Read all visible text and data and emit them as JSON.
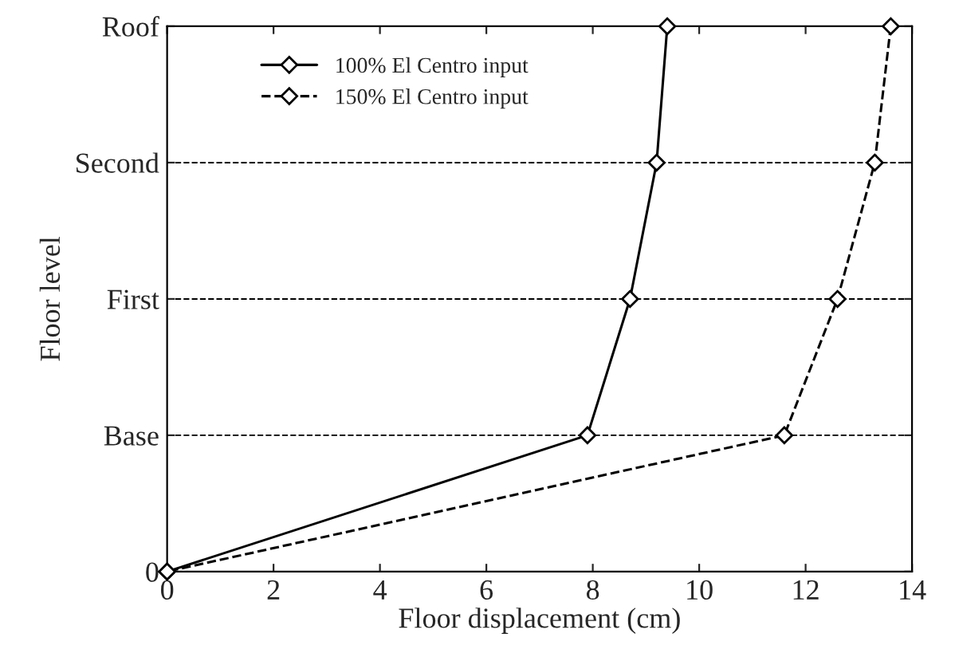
{
  "chart_data": {
    "type": "line",
    "orientation": "horizontal",
    "xlabel": "Floor displacement (cm)",
    "ylabel": "Floor level",
    "categories": [
      "Roof",
      "Second",
      "First",
      "Base",
      "0"
    ],
    "xlim": [
      0,
      14
    ],
    "xticks": [
      0,
      2,
      4,
      6,
      8,
      10,
      12,
      14
    ],
    "grid": "y",
    "legend": "top left",
    "marker": "diamond",
    "series": [
      {
        "name": "100% El Centro input",
        "color": "#000000",
        "line_style": "solid",
        "values": [
          9.4,
          9.2,
          8.7,
          7.9,
          0
        ]
      },
      {
        "name": "150% El Centro input",
        "color": "#000000",
        "line_style": "dashed",
        "values": [
          13.6,
          13.3,
          12.6,
          11.6,
          0
        ]
      }
    ]
  }
}
